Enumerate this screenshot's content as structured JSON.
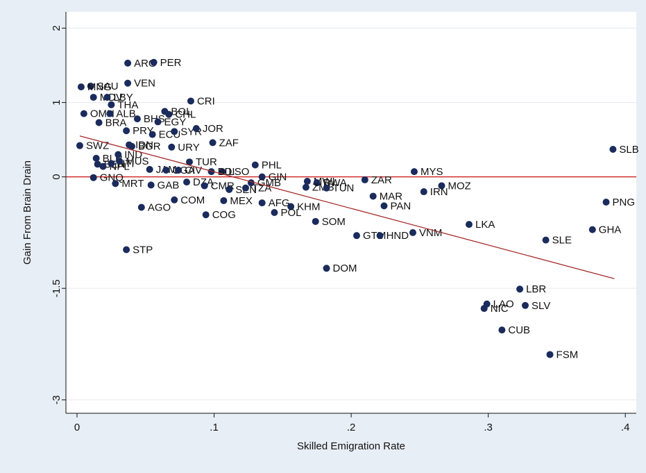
{
  "chart_data": {
    "type": "scatter",
    "xlabel": "Skilled Emigration Rate",
    "ylabel": "Gain From Brain Drain",
    "xlim": [
      -0.0081,
      0.408
    ],
    "ylim": [
      -3.18,
      2.22
    ],
    "xticks": [
      0,
      {
        "value": 0.1,
        "label": ".1"
      },
      {
        "value": 0.2,
        "label": ".2"
      },
      {
        "value": 0.3,
        "label": ".3"
      },
      {
        "value": 0.4,
        "label": ".4"
      }
    ],
    "yticks": [
      2,
      1,
      0,
      -1.5,
      -3
    ],
    "grid": true,
    "color": "#1a2b5c",
    "fit_color": "#a52a2a",
    "refline_color": "#cc1111",
    "refline": 0,
    "fit": {
      "x": [
        0.002,
        0.392
      ],
      "y": [
        0.55,
        -1.37
      ]
    },
    "labels": [
      "ARG",
      "PER",
      "VEN",
      "SAU",
      "MNG",
      "MDV",
      "LBY",
      "THA",
      "CRI",
      "OMN",
      "ALB",
      "BOL",
      "CHL",
      "BHS",
      "EGY",
      "BRA",
      "PRY",
      "ECU",
      "SYR",
      "JOR",
      "SWZ",
      "ZAF",
      "URY",
      "IDN",
      "BGR",
      "BLR",
      "IND",
      "TUR",
      "PHL",
      "LSO",
      "GIN",
      "MYS",
      "SLB",
      "ZAR",
      "MWI",
      "RWA",
      "MOZ",
      "IRN",
      "ZMB",
      "TUN",
      "MAR",
      "PAN",
      "PNG",
      "AFG",
      "KHM",
      "POL",
      "MEX",
      "COM",
      "AGO",
      "COG",
      "SOM",
      "LKA",
      "GHA",
      "GTM",
      "HND",
      "VNM",
      "SLE",
      "STP",
      "DOM",
      "LBR",
      "LAO",
      "NIC",
      "SLV",
      "CUB",
      "FSM",
      "MRT",
      "GNQ",
      "GAB",
      "BEN",
      "NPL",
      "HTI",
      "MUS",
      "JAM",
      "UGA",
      "CIV",
      "DZA",
      "CMR",
      "SEN",
      "TZA",
      "GMB",
      "BDI"
    ],
    "x": [
      0.037,
      0.056,
      0.037,
      0.01,
      0.003,
      0.012,
      0.022,
      0.025,
      0.083,
      0.005,
      0.024,
      0.064,
      0.067,
      0.044,
      0.059,
      0.016,
      0.036,
      0.055,
      0.071,
      0.087,
      0.002,
      0.099,
      0.069,
      0.038,
      0.04,
      0.014,
      0.03,
      0.082,
      0.13,
      0.106,
      0.135,
      0.246,
      0.391,
      0.21,
      0.168,
      0.175,
      0.266,
      0.253,
      0.167,
      0.182,
      0.216,
      0.224,
      0.386,
      0.135,
      0.156,
      0.144,
      0.107,
      0.071,
      0.047,
      0.094,
      0.174,
      0.286,
      0.376,
      0.204,
      0.221,
      0.245,
      0.342,
      0.036,
      0.182,
      0.323,
      0.299,
      0.297,
      0.327,
      0.31,
      0.345,
      0.028,
      0.012,
      0.054,
      0.015,
      0.019,
      0.025,
      0.031,
      0.053,
      0.065,
      0.074,
      0.08,
      0.093,
      0.111,
      0.123,
      0.127,
      0.098
    ],
    "y": [
      1.53,
      1.54,
      1.26,
      1.22,
      1.21,
      1.07,
      1.07,
      0.97,
      1.02,
      0.85,
      0.85,
      0.88,
      0.84,
      0.78,
      0.74,
      0.73,
      0.62,
      0.57,
      0.61,
      0.65,
      0.42,
      0.46,
      0.4,
      0.43,
      0.41,
      0.25,
      0.3,
      0.2,
      0.16,
      0.07,
      0,
      0.07,
      0.37,
      -0.04,
      -0.06,
      -0.08,
      -0.12,
      -0.2,
      -0.14,
      -0.15,
      -0.26,
      -0.39,
      -0.34,
      -0.35,
      -0.4,
      -0.48,
      -0.32,
      -0.31,
      -0.41,
      -0.51,
      -0.6,
      -0.64,
      -0.71,
      -0.79,
      -0.79,
      -0.75,
      -0.85,
      -0.98,
      -1.23,
      -1.51,
      -1.71,
      -1.77,
      -1.73,
      -2.06,
      -2.39,
      -0.09,
      -0.01,
      -0.11,
      0.17,
      0.14,
      0.18,
      0.21,
      0.1,
      0.09,
      0.09,
      -0.07,
      -0.12,
      -0.17,
      -0.15,
      -0.08,
      0.07
    ]
  }
}
